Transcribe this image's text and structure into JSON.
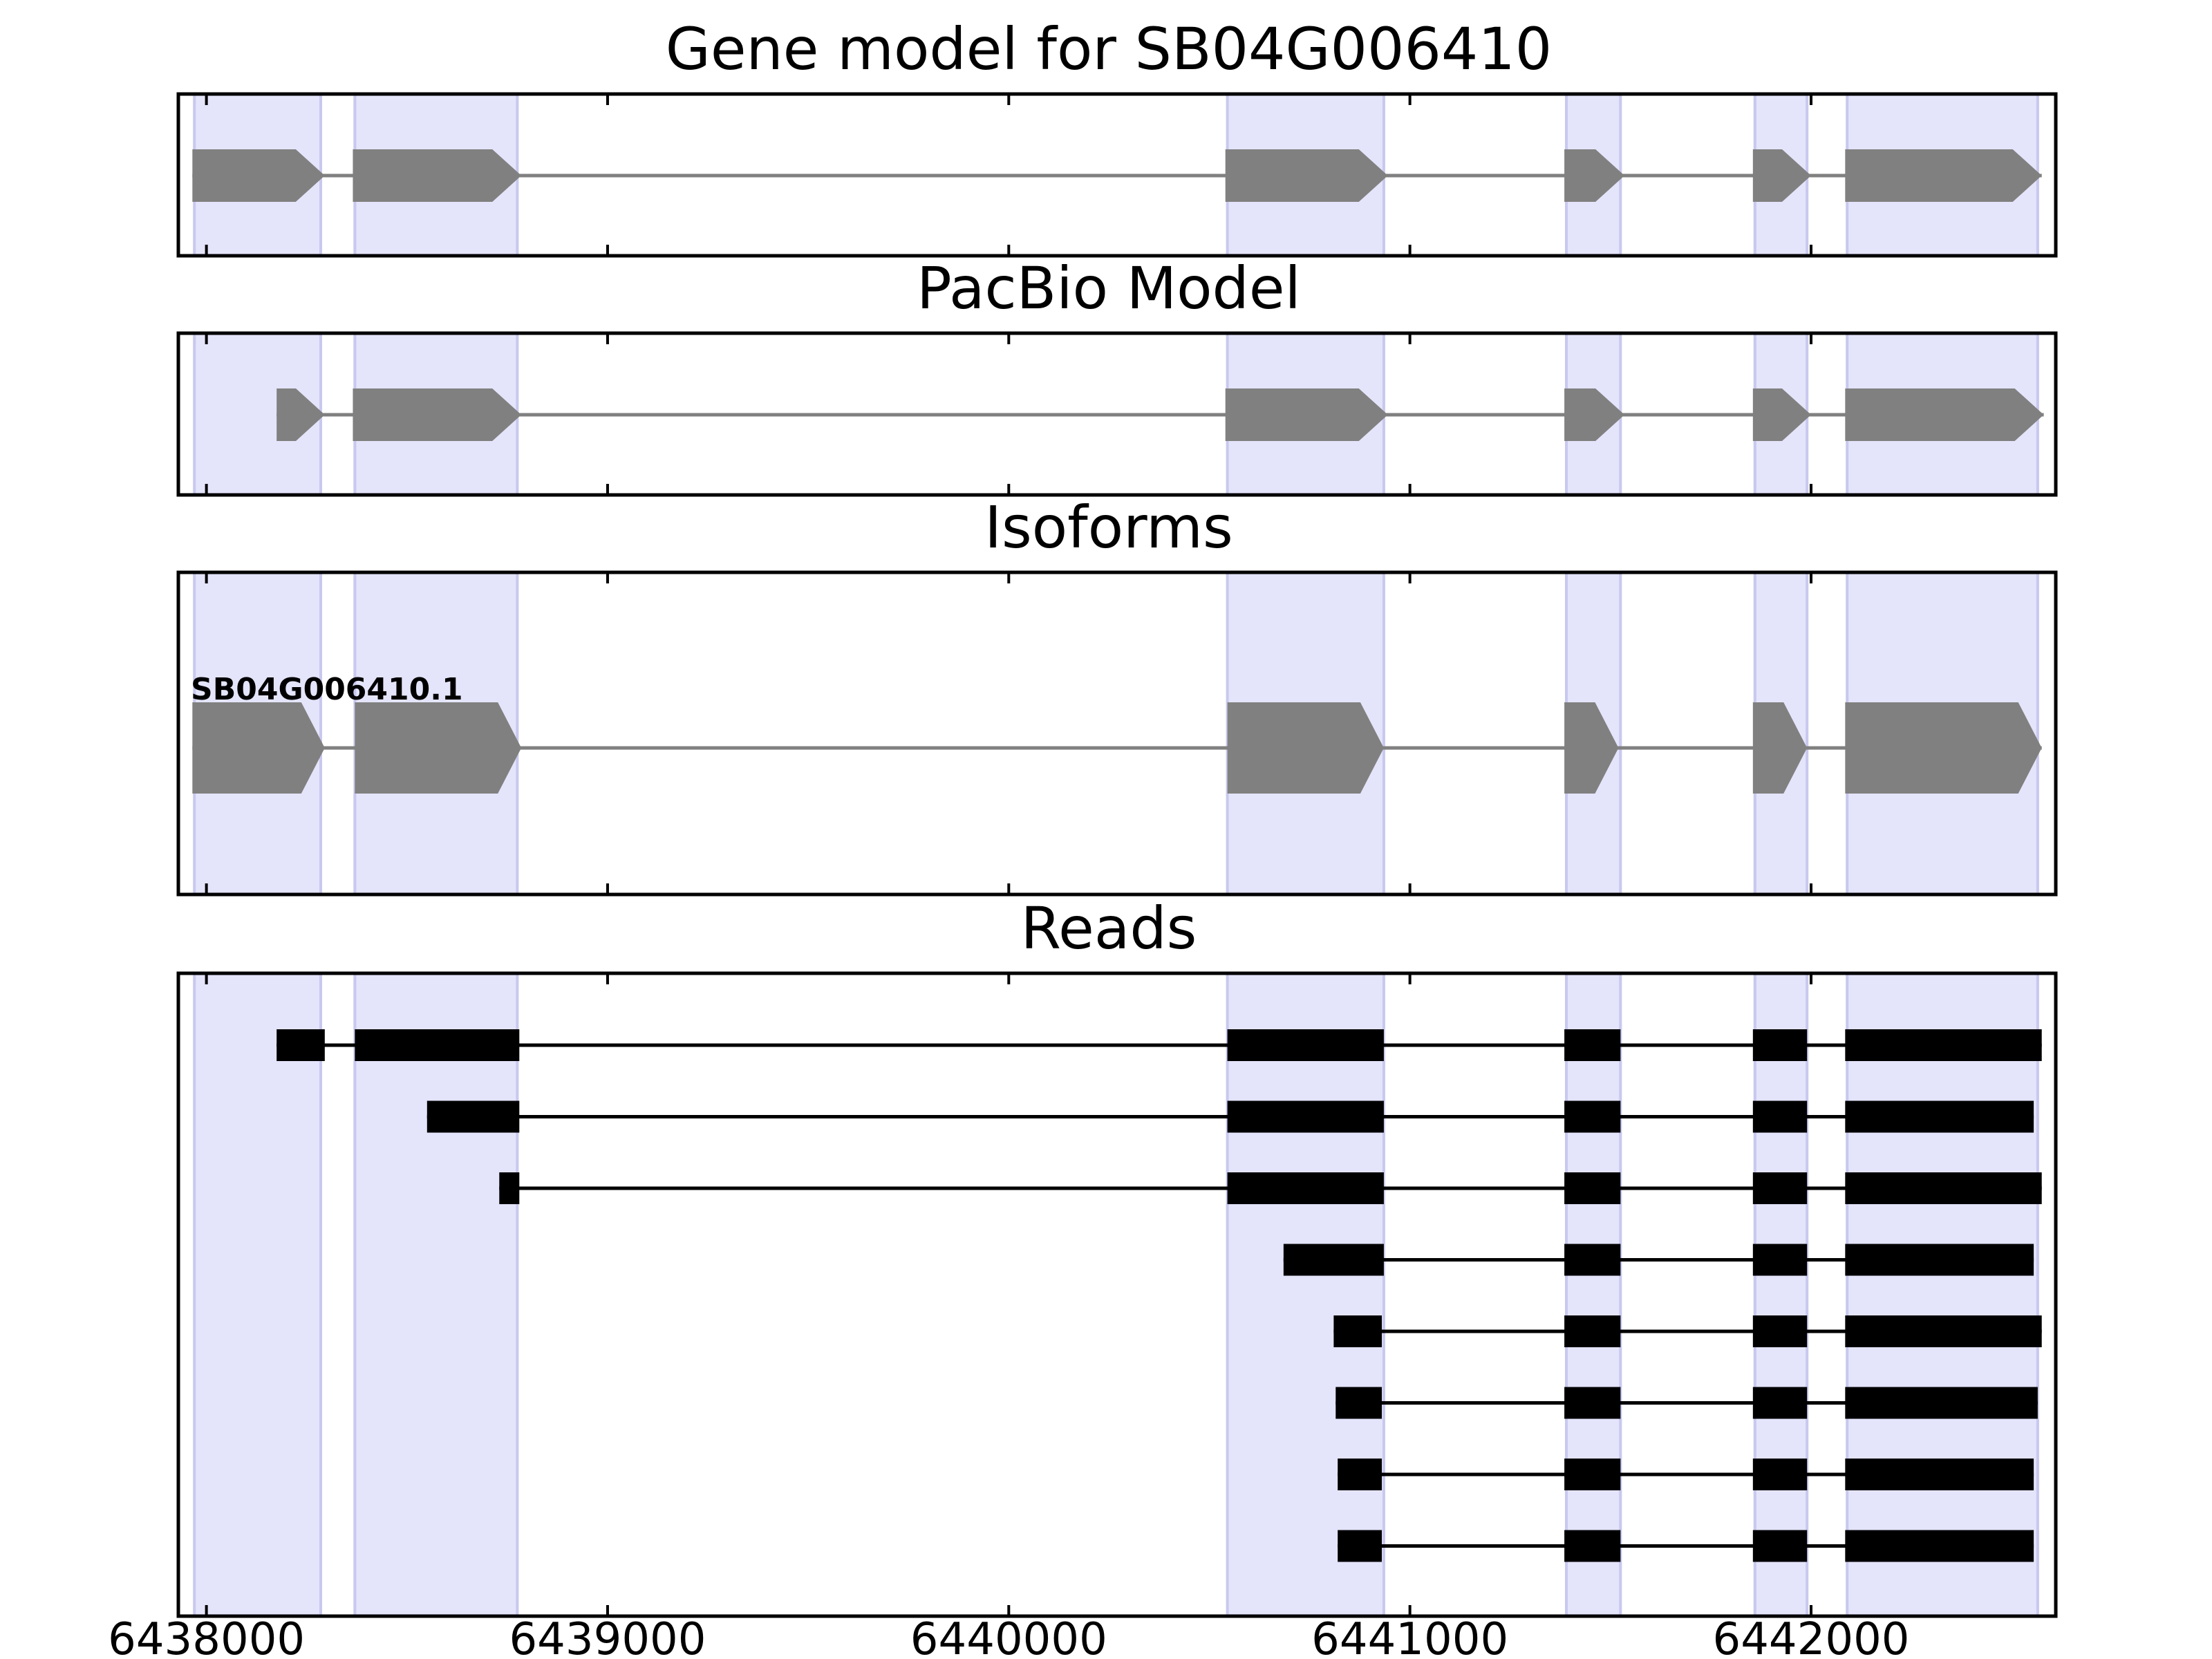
{
  "chart_data": {
    "type": "gene-track",
    "xlim": [
      6437930,
      6442610
    ],
    "x_ticks": [
      6438000,
      6439000,
      6440000,
      6441000,
      6442000
    ],
    "x_tick_labels": [
      "6438000",
      "6439000",
      "6440000",
      "6441000",
      "6442000"
    ],
    "grid": false,
    "colors": {
      "highlight": "#e4e4fb",
      "highlight_edge": "#c8c8ef",
      "model_feature": "#808080",
      "intron_gray": "#808080",
      "read": "#000000",
      "frame": "#000000"
    },
    "highlight_regions": [
      [
        6437970,
        6438285
      ],
      [
        6438370,
        6438775
      ],
      [
        6440545,
        6440935
      ],
      [
        6441390,
        6441525
      ],
      [
        6441860,
        6441990
      ],
      [
        6442090,
        6442565
      ]
    ],
    "panels": [
      {
        "id": "gene-model",
        "title": "Gene model for SB04G006410",
        "kind": "model",
        "exons": [
          [
            6437965,
            6438295
          ],
          [
            6438365,
            6438785
          ],
          [
            6440540,
            6440945
          ],
          [
            6441385,
            6441535
          ],
          [
            6441855,
            6442000
          ],
          [
            6442085,
            6442575
          ]
        ]
      },
      {
        "id": "pacbio-model",
        "title": "PacBio Model",
        "kind": "model",
        "exons": [
          [
            6438175,
            6438295
          ],
          [
            6438365,
            6438785
          ],
          [
            6440540,
            6440945
          ],
          [
            6441385,
            6441535
          ],
          [
            6441855,
            6442000
          ],
          [
            6442085,
            6442580
          ]
        ]
      },
      {
        "id": "isoforms",
        "title": "Isoforms",
        "kind": "isoform",
        "isoform_label": "SB04G006410.1",
        "exons": [
          [
            6437965,
            6438295
          ],
          [
            6438370,
            6438785
          ],
          [
            6440545,
            6440935
          ],
          [
            6441385,
            6441520
          ],
          [
            6441855,
            6441990
          ],
          [
            6442085,
            6442575
          ]
        ]
      },
      {
        "id": "reads",
        "title": "Reads",
        "kind": "reads",
        "reads": [
          {
            "exons": [
              [
                6438175,
                6438295
              ],
              [
                6438370,
                6438780
              ],
              [
                6440545,
                6440935
              ],
              [
                6441385,
                6441525
              ],
              [
                6441855,
                6441990
              ],
              [
                6442085,
                6442575
              ]
            ]
          },
          {
            "exons": [
              [
                6438550,
                6438780
              ],
              [
                6440545,
                6440935
              ],
              [
                6441385,
                6441525
              ],
              [
                6441855,
                6441990
              ],
              [
                6442085,
                6442555
              ]
            ]
          },
          {
            "exons": [
              [
                6438730,
                6438780
              ],
              [
                6440545,
                6440935
              ],
              [
                6441385,
                6441525
              ],
              [
                6441855,
                6441990
              ],
              [
                6442085,
                6442575
              ]
            ]
          },
          {
            "exons": [
              [
                6440685,
                6440935
              ],
              [
                6441385,
                6441525
              ],
              [
                6441855,
                6441990
              ],
              [
                6442085,
                6442555
              ]
            ]
          },
          {
            "exons": [
              [
                6440810,
                6440930
              ],
              [
                6441385,
                6441525
              ],
              [
                6441855,
                6441990
              ],
              [
                6442085,
                6442575
              ]
            ]
          },
          {
            "exons": [
              [
                6440815,
                6440930
              ],
              [
                6441385,
                6441525
              ],
              [
                6441855,
                6441990
              ],
              [
                6442085,
                6442565
              ]
            ]
          },
          {
            "exons": [
              [
                6440820,
                6440930
              ],
              [
                6441385,
                6441525
              ],
              [
                6441855,
                6441990
              ],
              [
                6442085,
                6442555
              ]
            ]
          },
          {
            "exons": [
              [
                6440820,
                6440930
              ],
              [
                6441385,
                6441525
              ],
              [
                6441855,
                6441990
              ],
              [
                6442085,
                6442555
              ]
            ]
          }
        ]
      }
    ]
  }
}
